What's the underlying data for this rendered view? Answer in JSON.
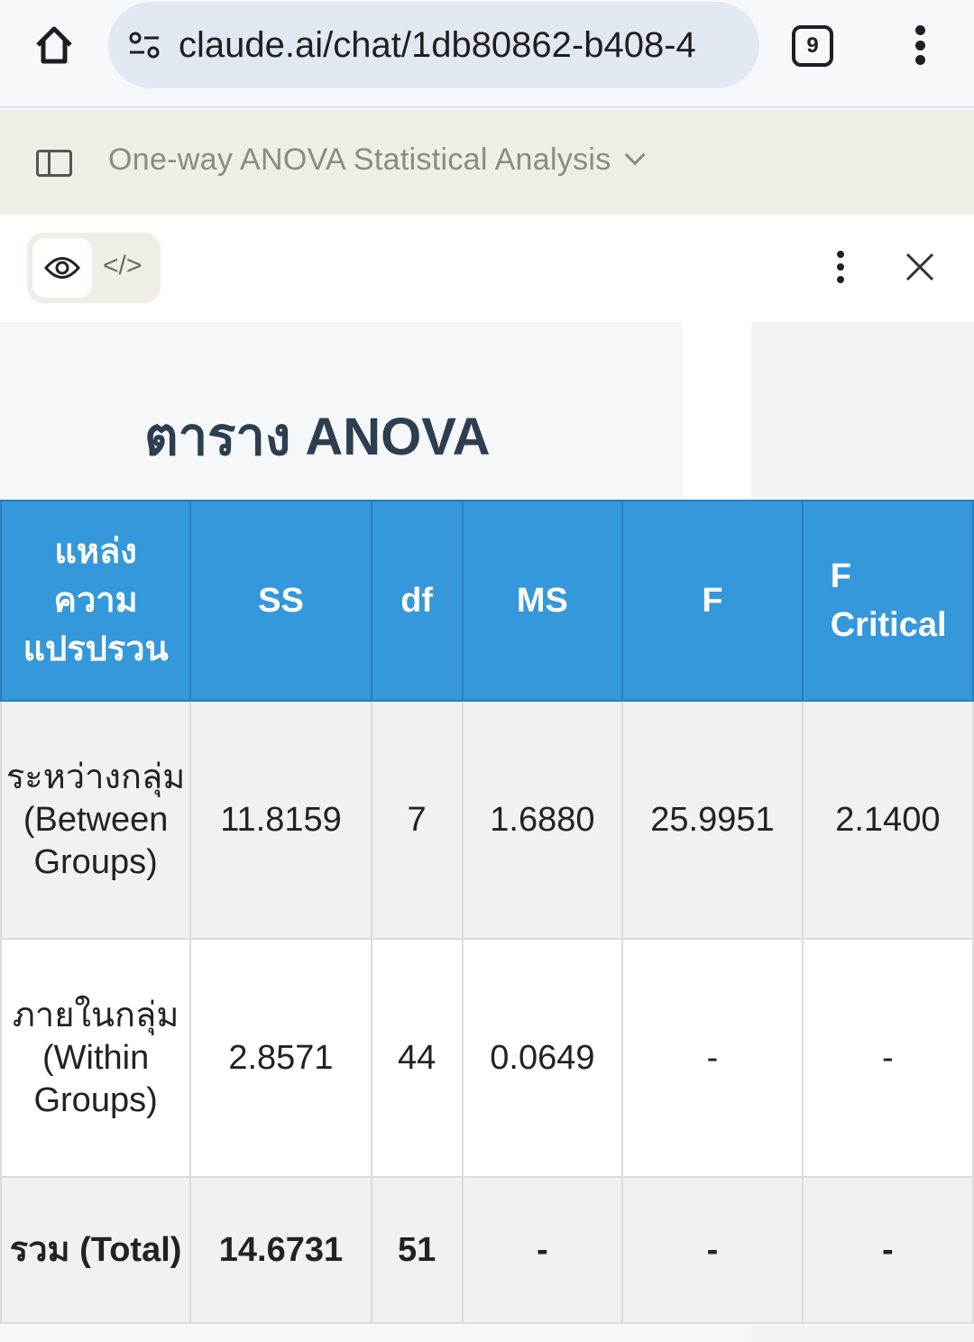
{
  "browser": {
    "url": "claude.ai/chat/1db80862-b408-4",
    "tab_count": "9"
  },
  "header": {
    "title": "One-way ANOVA Statistical Analysis"
  },
  "artifact": {
    "code_label": "</>"
  },
  "page": {
    "heading": "ตาราง ANOVA"
  },
  "table": {
    "headers": [
      "แหล่งความแปรปรวน",
      "SS",
      "df",
      "MS",
      "F",
      "F Critical"
    ],
    "rows": [
      [
        "ระหว่างกลุ่ม (Between Groups)",
        "11.8159",
        "7",
        "1.6880",
        "25.9951",
        "2.1400"
      ],
      [
        "ภายในกลุ่ม (Within Groups)",
        "2.8571",
        "44",
        "0.0649",
        "-",
        "-"
      ],
      [
        "รวม (Total)",
        "14.6731",
        "51",
        "-",
        "-",
        "-"
      ]
    ]
  },
  "colors": {
    "header_bg": "#3498db",
    "heading": "#2c3e50"
  }
}
